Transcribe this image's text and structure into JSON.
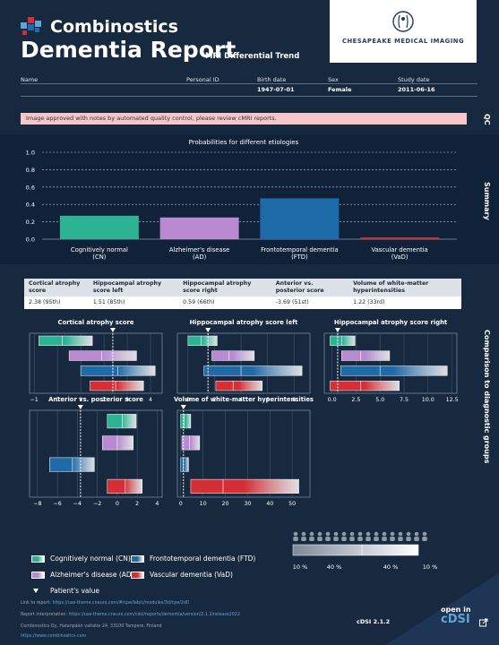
{
  "brand": {
    "name": "Combinostics",
    "partner": "CHESAPEAKE MEDICAL IMAGING"
  },
  "report": {
    "title": "Dementia Report",
    "subtitle": "MRI Differential Trend"
  },
  "patient": {
    "fields": [
      {
        "label": "Name",
        "value": ""
      },
      {
        "label": "Personal ID",
        "value": ""
      },
      {
        "label": "Birth date",
        "value": "1947-07-01"
      },
      {
        "label": "Sex",
        "value": "Female"
      },
      {
        "label": "Study date",
        "value": "2011-06-16"
      }
    ]
  },
  "qc": {
    "label": "QC",
    "message": "Image approved with notes by automated quality control, please review cMRI reports."
  },
  "summary": {
    "label": "Summary"
  },
  "comparison": {
    "label": "Comparison to diagnostic groups"
  },
  "colors": {
    "cn": "#2cb394",
    "ad": "#b98ad1",
    "ftd": "#1f6aa8",
    "vad": "#d42f36",
    "bg": "#17293f"
  },
  "chart_data": [
    {
      "type": "bar",
      "title": "Probabilities for different etiologies",
      "categories": [
        "Cognitively normal\n(CN)",
        "Alzheimer's disease\n(AD)",
        "Frontotemporal dementia\n(FTD)",
        "Vascular dementia\n(VaD)"
      ],
      "values": [
        0.27,
        0.25,
        0.47,
        0.02
      ],
      "ylim": [
        0,
        1.0
      ],
      "yticks": [
        "0.0",
        "0.2",
        "0.4",
        "0.6",
        "0.8",
        "1.0"
      ]
    },
    {
      "type": "table",
      "columns": [
        "Cortical atrophy score",
        "Hippocampal atrophy score left",
        "Hippocampal atrophy score right",
        "Anterior vs. posterior score",
        "Volume of white-matter hyperintensities"
      ],
      "rows": [
        [
          "2.38 (95th)",
          "1.51 (85th)",
          "0.59 (66th)",
          "-3.69 (51st)",
          "1.22 (33rd)"
        ]
      ]
    }
  ],
  "mini_charts": [
    {
      "title": "Cortical atrophy score",
      "xticks": [
        "−1",
        "0",
        "1",
        "2",
        "3",
        "4"
      ],
      "tick_vals": [
        -1,
        0,
        1,
        2,
        3,
        4
      ],
      "xmin": -1.2,
      "xmax": 4.5,
      "patient": 2.38,
      "groups": [
        [
          -0.8,
          0.2,
          1.5
        ],
        [
          0.5,
          1.9,
          3.4
        ],
        [
          1.0,
          2.6,
          4.2
        ],
        [
          1.4,
          2.5,
          3.7
        ]
      ]
    },
    {
      "title": "Hippocampal atrophy score left",
      "xticks": [
        "0",
        "2",
        "4",
        "6",
        "8"
      ],
      "tick_vals": [
        0,
        2,
        4,
        6,
        8
      ],
      "xmin": -0.8,
      "xmax": 9.2,
      "patient": 1.51,
      "groups": [
        [
          0.0,
          1.0,
          2.2
        ],
        [
          1.8,
          3.1,
          5.0
        ],
        [
          1.2,
          4.0,
          8.6
        ],
        [
          2.1,
          3.4,
          5.6
        ]
      ]
    },
    {
      "title": "Hippocampal atrophy score right",
      "xticks": [
        "0.0",
        "2.5",
        "5.0",
        "7.5",
        "10.0",
        "12.5"
      ],
      "tick_vals": [
        0,
        2.5,
        5,
        7.5,
        10,
        12.5
      ],
      "xmin": -0.8,
      "xmax": 13.0,
      "patient": 0.59,
      "groups": [
        [
          -0.2,
          1.0,
          2.4
        ],
        [
          1.0,
          3.0,
          6.0
        ],
        [
          0.9,
          5.0,
          12.0
        ],
        [
          -0.2,
          3.0,
          7.0
        ]
      ]
    },
    {
      "title": "Anterior vs. posterior score",
      "xticks": [
        "−8",
        "−6",
        "−4",
        "−2",
        "0",
        "2",
        "4"
      ],
      "tick_vals": [
        -8,
        -6,
        -4,
        -2,
        0,
        2,
        4
      ],
      "xmin": -8.8,
      "xmax": 4.5,
      "patient": -3.69,
      "groups": [
        [
          -1.0,
          0.5,
          1.9
        ],
        [
          -1.5,
          0.0,
          1.6
        ],
        [
          -6.8,
          -4.5,
          -2.3
        ],
        [
          -1.0,
          0.8,
          2.5
        ]
      ]
    },
    {
      "title": "Volume of white-matter hyperintensities",
      "xticks": [
        "0",
        "10",
        "20",
        "30",
        "40",
        "50"
      ],
      "tick_vals": [
        0,
        10,
        20,
        30,
        40,
        50
      ],
      "xmin": -1.5,
      "xmax": 58,
      "patient": 1.22,
      "groups": [
        [
          0.0,
          1.5,
          4.5
        ],
        [
          0.5,
          4.0,
          8.5
        ],
        [
          0.0,
          1.2,
          3.5
        ],
        [
          4.5,
          19.0,
          53.0
        ]
      ]
    }
  ],
  "legend": {
    "items": [
      {
        "key": "cn",
        "label": "Cognitively normal (CN)"
      },
      {
        "key": "ftd",
        "label": "Frontotemporal dementia (FTD)"
      },
      {
        "key": "ad",
        "label": "Alzheimer's disease (AD)"
      },
      {
        "key": "vad",
        "label": "Vascular dementia (VaD)"
      }
    ],
    "patient_label": "Patient's value",
    "percentiles": [
      "10 %",
      "40 %",
      "40 %",
      "10 %"
    ]
  },
  "footer": {
    "link_label": "Link to report:",
    "link_url": "https://use-theme.cneuro.com/#/cpe/lab/c/modules/3d/cpe/2d0",
    "interp_label": "Report interpretation:",
    "interp_url": "https://use-theme.cneuro.com/cdsi/reports/dementia/version/2.1.2/release2022",
    "company": "Combinostics Oy, Hatanpään valtatie 24, 33100 Tampere, Finland",
    "website": "https://www.combinostics.com",
    "version": "cDSI 2.1.2",
    "open_in": "open in",
    "cdsi": "cDSI"
  }
}
